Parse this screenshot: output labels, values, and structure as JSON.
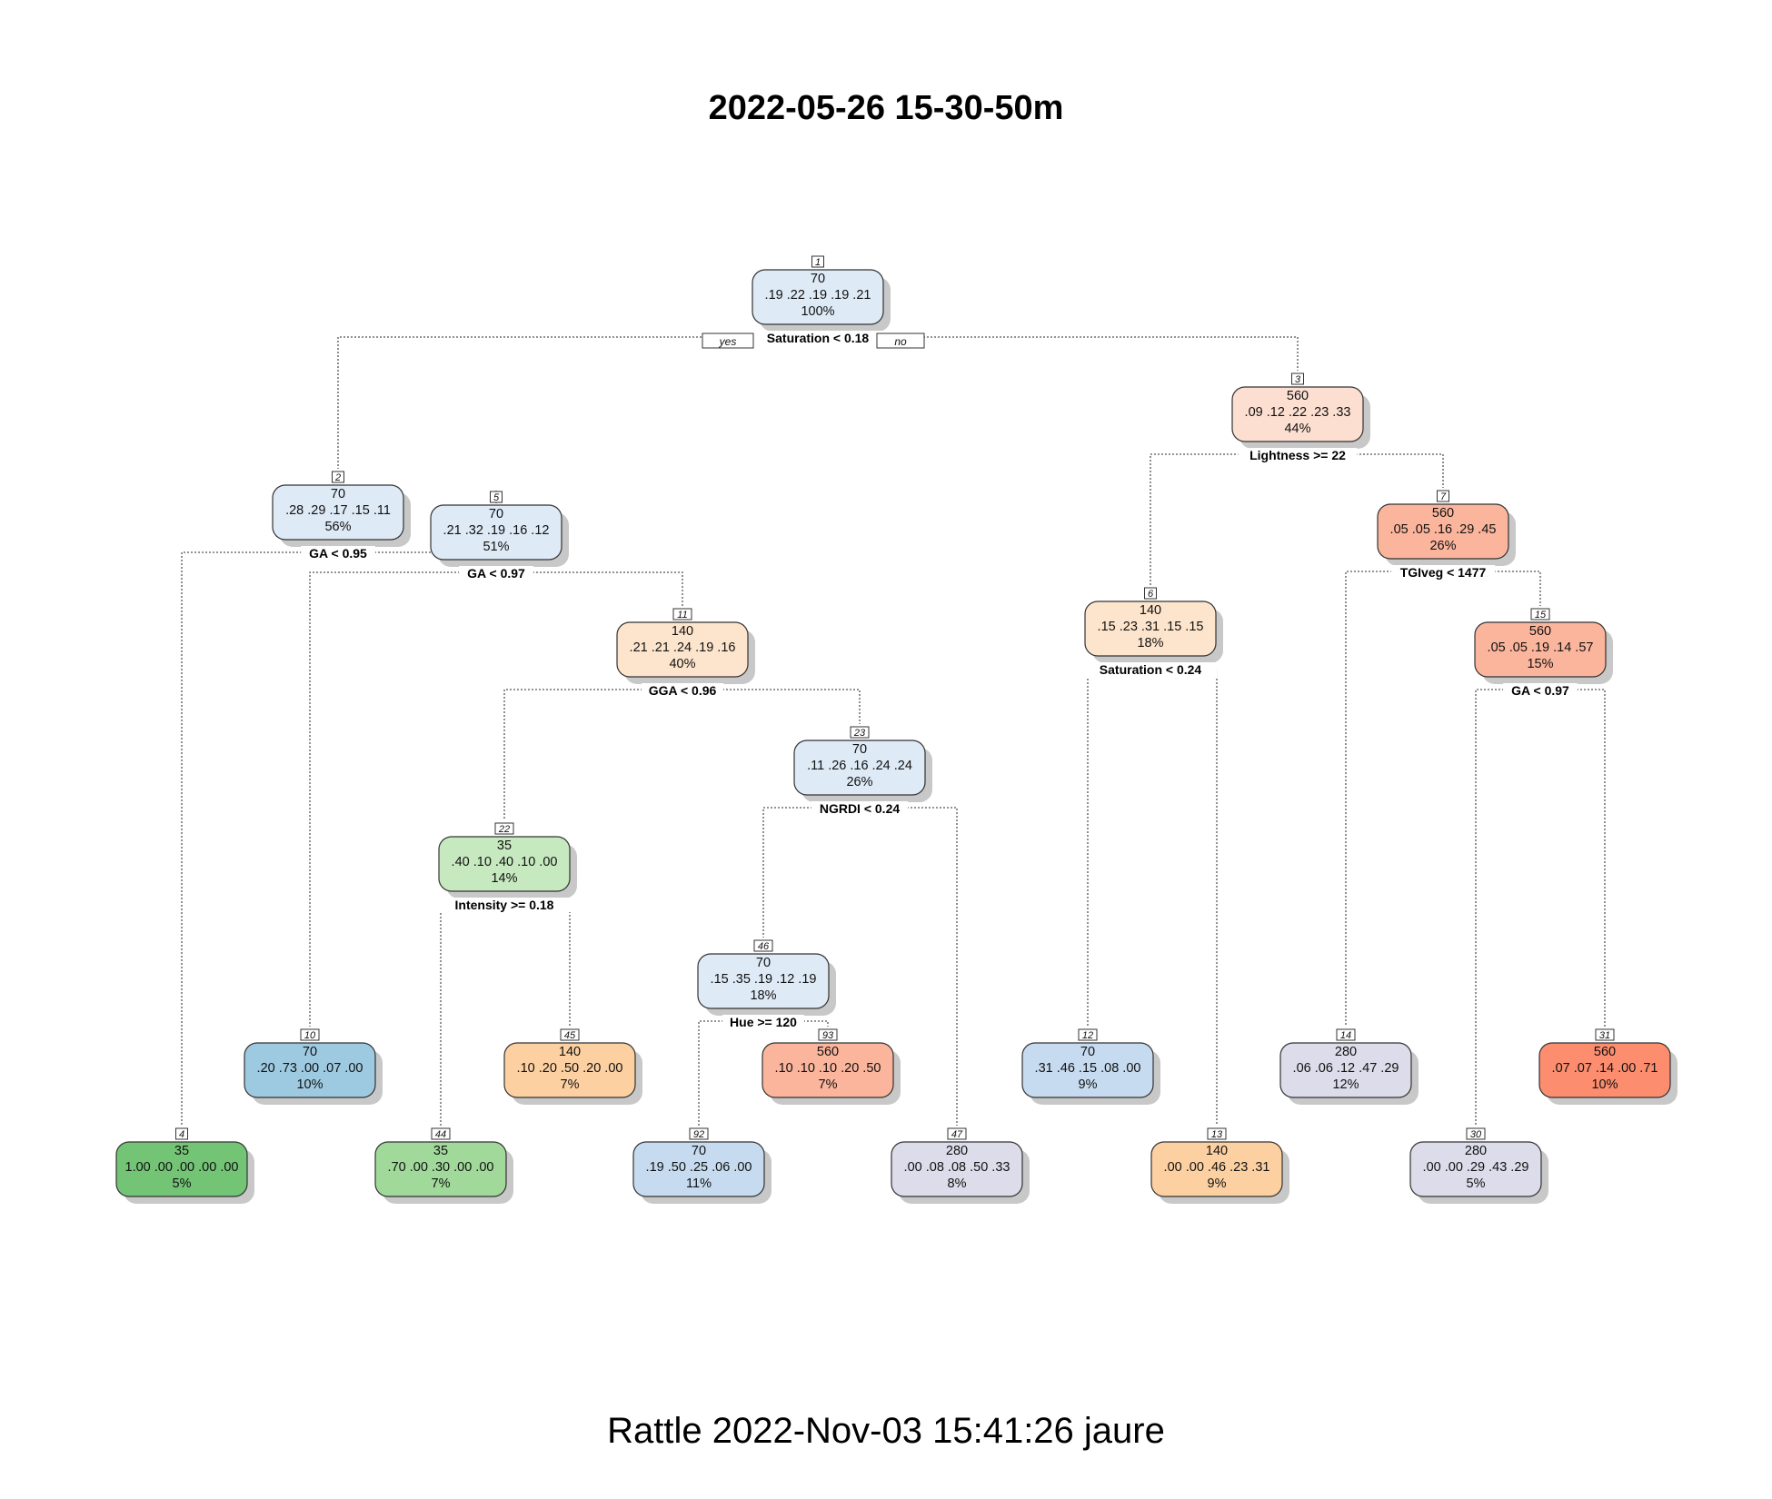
{
  "title": "2022-05-26 15-30-50m",
  "footer": "Rattle 2022-Nov-03 15:41:26 jaure",
  "branch_labels": {
    "yes": "yes",
    "no": "no"
  },
  "nodes": [
    {
      "id": "1",
      "class": "70",
      "probs": ".19 .22 .19 .19 .21",
      "pct": "100%",
      "split": "Saturation < 0.18",
      "color": "#deeaf6"
    },
    {
      "id": "2",
      "class": "70",
      "probs": ".28 .29 .17 .15 .11",
      "pct": "56%",
      "split": "GA < 0.95",
      "color": "#deeaf6"
    },
    {
      "id": "3",
      "class": "560",
      "probs": ".09 .12 .22 .23 .33",
      "pct": "44%",
      "split": "Lightness >= 22",
      "color": "#fcdfd1"
    },
    {
      "id": "4",
      "class": "35",
      "probs": "1.00 .00 .00 .00 .00",
      "pct": "5%",
      "color": "#74c476"
    },
    {
      "id": "5",
      "class": "70",
      "probs": ".21 .32 .19 .16 .12",
      "pct": "51%",
      "split": "GA < 0.97",
      "color": "#deeaf6"
    },
    {
      "id": "6",
      "class": "140",
      "probs": ".15 .23 .31 .15 .15",
      "pct": "18%",
      "split": "Saturation < 0.24",
      "color": "#fde5cd"
    },
    {
      "id": "7",
      "class": "560",
      "probs": ".05 .05 .16 .29 .45",
      "pct": "26%",
      "split": "TGIveg < 1477",
      "color": "#fbb59c"
    },
    {
      "id": "10",
      "class": "70",
      "probs": ".20 .73 .00 .07 .00",
      "pct": "10%",
      "color": "#9ecae1"
    },
    {
      "id": "11",
      "class": "140",
      "probs": ".21 .21 .24 .19 .16",
      "pct": "40%",
      "split": "GGA < 0.96",
      "color": "#fde5cd"
    },
    {
      "id": "12",
      "class": "70",
      "probs": ".31 .46 .15 .08 .00",
      "pct": "9%",
      "color": "#c6dbef"
    },
    {
      "id": "13",
      "class": "140",
      "probs": ".00 .00 .46 .23 .31",
      "pct": "9%",
      "color": "#fdd0a2"
    },
    {
      "id": "14",
      "class": "280",
      "probs": ".06 .06 .12 .47 .29",
      "pct": "12%",
      "color": "#dcdcea"
    },
    {
      "id": "15",
      "class": "560",
      "probs": ".05 .05 .19 .14 .57",
      "pct": "15%",
      "split": "GA < 0.97",
      "color": "#fbb59c"
    },
    {
      "id": "22",
      "class": "35",
      "probs": ".40 .10 .40 .10 .00",
      "pct": "14%",
      "split": "Intensity >= 0.18",
      "color": "#c7e9c0"
    },
    {
      "id": "23",
      "class": "70",
      "probs": ".11 .26 .16 .24 .24",
      "pct": "26%",
      "split": "NGRDI < 0.24",
      "color": "#deeaf6"
    },
    {
      "id": "30",
      "class": "280",
      "probs": ".00 .00 .29 .43 .29",
      "pct": "5%",
      "color": "#dcdcea"
    },
    {
      "id": "31",
      "class": "560",
      "probs": ".07 .07 .14 .00 .71",
      "pct": "10%",
      "color": "#fc8d6e"
    },
    {
      "id": "44",
      "class": "35",
      "probs": ".70 .00 .30 .00 .00",
      "pct": "7%",
      "color": "#a1d99b"
    },
    {
      "id": "45",
      "class": "140",
      "probs": ".10 .20 .50 .20 .00",
      "pct": "7%",
      "color": "#fdd0a2"
    },
    {
      "id": "46",
      "class": "70",
      "probs": ".15 .35 .19 .12 .19",
      "pct": "18%",
      "split": "Hue >= 120",
      "color": "#deeaf6"
    },
    {
      "id": "47",
      "class": "280",
      "probs": ".00 .08 .08 .50 .33",
      "pct": "8%",
      "color": "#dcdcea"
    },
    {
      "id": "92",
      "class": "70",
      "probs": ".19 .50 .25 .06 .00",
      "pct": "11%",
      "color": "#c6dbef"
    },
    {
      "id": "93",
      "class": "560",
      "probs": ".10 .10 .10 .20 .50",
      "pct": "7%",
      "color": "#fbb59c"
    }
  ]
}
